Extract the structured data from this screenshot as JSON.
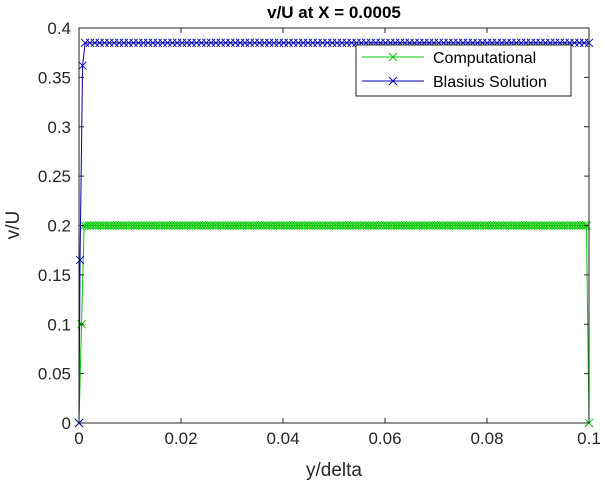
{
  "chart_data": {
    "type": "line",
    "title": "v/U at X = 0.0005",
    "xlabel": "y/delta",
    "ylabel": "v/U",
    "xlim": [
      0,
      0.1
    ],
    "ylim": [
      0,
      0.4
    ],
    "xticks": [
      0,
      0.02,
      0.04,
      0.06,
      0.08,
      0.1
    ],
    "xtick_labels": [
      "0",
      "0.02",
      "0.04",
      "0.06",
      "0.08",
      "0.1"
    ],
    "yticks": [
      0,
      0.05,
      0.1,
      0.15,
      0.2,
      0.25,
      0.3,
      0.35,
      0.4
    ],
    "ytick_labels": [
      "0",
      "0.05",
      "0.1",
      "0.15",
      "0.2",
      "0.25",
      "0.3",
      "0.35",
      "0.4"
    ],
    "grid": false,
    "legend_position": "top-right",
    "marker": "x",
    "series": [
      {
        "name": "Computational",
        "color": "#00c800",
        "start": [
          [
            0,
            0
          ],
          [
            0.0005,
            0.1
          ],
          [
            0.001,
            0.2
          ]
        ],
        "plateau": {
          "from": 0.001,
          "to": 0.0995,
          "step": 0.0005,
          "value": 0.2
        },
        "end": [
          [
            0.0995,
            0.2
          ],
          [
            0.1,
            0
          ]
        ]
      },
      {
        "name": "Blasius Solution",
        "color": "#0000b4",
        "start": [
          [
            0,
            0
          ],
          [
            0.0002,
            0.165
          ],
          [
            0.0007,
            0.362
          ],
          [
            0.0012,
            0.385
          ]
        ],
        "plateau": {
          "from": 0.0012,
          "to": 0.1,
          "step": 0.00095,
          "value": 0.385
        },
        "end": []
      }
    ]
  }
}
